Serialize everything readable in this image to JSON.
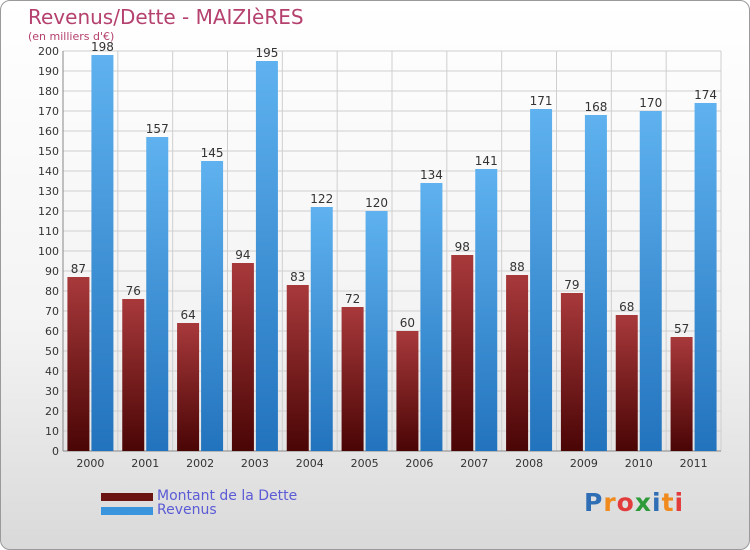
{
  "header": {
    "title": "Revenus/Dette - MAIZIèRES",
    "subtitle": "(en milliers d'€)"
  },
  "legend": {
    "items": [
      {
        "label": "Montant de la Dette",
        "color": "#7a1f1f"
      },
      {
        "label": "Revenus",
        "color": "#3b95dd"
      }
    ]
  },
  "logo": {
    "text": "Proxiti",
    "letters": [
      "P",
      "r",
      "o",
      "x",
      "i",
      "t",
      "i"
    ]
  },
  "chart_data": {
    "type": "bar",
    "categories": [
      "2000",
      "2001",
      "2002",
      "2003",
      "2004",
      "2005",
      "2006",
      "2007",
      "2008",
      "2009",
      "2010",
      "2011"
    ],
    "series": [
      {
        "name": "Montant de la Dette",
        "values": [
          87,
          76,
          64,
          94,
          83,
          72,
          60,
          98,
          88,
          79,
          68,
          57
        ],
        "color": "#7a1f1f"
      },
      {
        "name": "Revenus",
        "values": [
          198,
          157,
          145,
          195,
          122,
          120,
          134,
          141,
          171,
          168,
          170,
          174
        ],
        "color": "#3b95dd"
      }
    ],
    "title": "Revenus/Dette - MAIZIèRES",
    "subtitle": "(en milliers d'€)",
    "ylim": [
      0,
      200
    ],
    "yticks": [
      0,
      10,
      20,
      30,
      40,
      50,
      60,
      70,
      80,
      90,
      100,
      110,
      120,
      130,
      140,
      150,
      160,
      170,
      180,
      190,
      200
    ],
    "grid": true,
    "legend_position": "bottom-left"
  }
}
